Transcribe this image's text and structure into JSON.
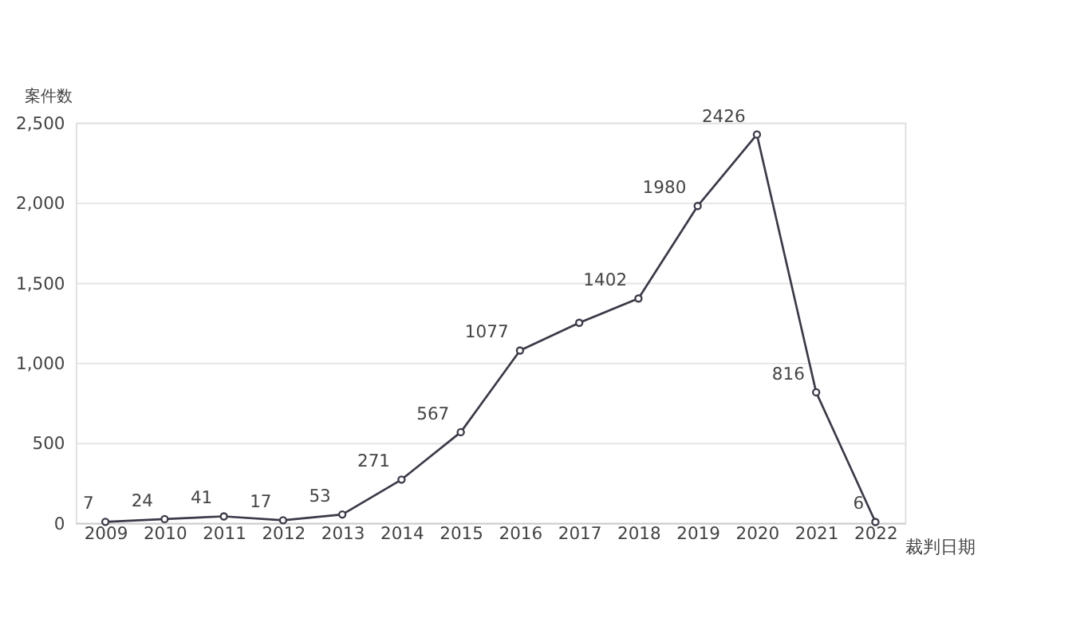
{
  "chart_data": {
    "type": "line",
    "xlabel": "裁判日期",
    "ylabel": "案件数",
    "categories": [
      "2009",
      "2010",
      "2011",
      "2012",
      "2013",
      "2014",
      "2015",
      "2016",
      "2017",
      "2018",
      "2019",
      "2020",
      "2021",
      "2022"
    ],
    "series": [
      {
        "color": "#3a3a48",
        "values": [
          7,
          24,
          41,
          17,
          53,
          271,
          567,
          1077,
          1250,
          1402,
          1980,
          2426,
          816,
          6
        ],
        "value_labels": [
          "7",
          "24",
          "41",
          "17",
          "53",
          "271",
          "567",
          "1077",
          null,
          "1402",
          "1980",
          "2426",
          "816",
          "6"
        ]
      }
    ],
    "ylim": [
      0,
      2500
    ],
    "yticks": [
      0,
      500,
      {
        "value": 1000,
        "label": "1,000"
      },
      {
        "value": 1500,
        "label": "1,500"
      },
      {
        "value": 2000,
        "label": "2,000"
      },
      {
        "value": 2500,
        "label": "2,500"
      }
    ],
    "grid": "y",
    "marker": "circle",
    "line_style": "solid"
  }
}
